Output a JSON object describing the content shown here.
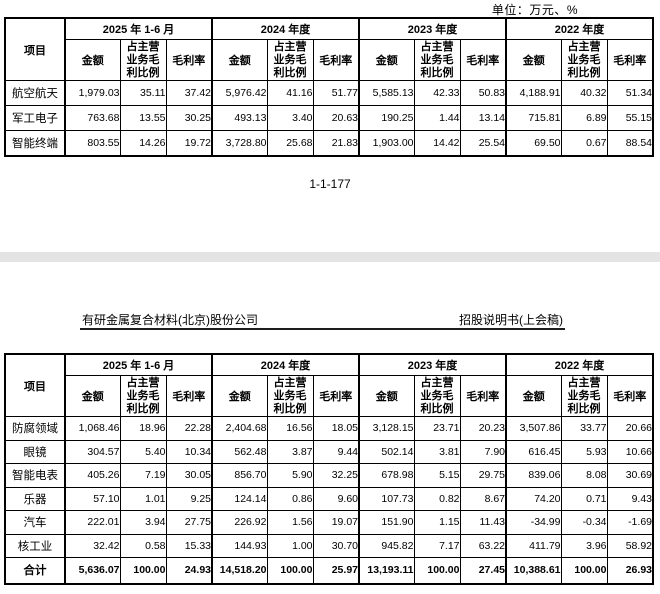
{
  "page1": {
    "unit_label": "单位：万元、%",
    "page_number": "1-1-177"
  },
  "page2": {
    "company": "有研金属复合材料(北京)股份公司",
    "doc_title": "招股说明书(上会稿)"
  },
  "table_header": {
    "item_label": "项目",
    "year_groups": [
      "2025 年 1-6 月",
      "2024 年度",
      "2023 年度",
      "2022 年度"
    ],
    "sub_columns": [
      "金额",
      "占主营业务毛利比例",
      "毛利率"
    ]
  },
  "table1": {
    "rows": [
      {
        "label": "航空航天",
        "values": [
          "1,979.03",
          "35.11",
          "37.42",
          "5,976.42",
          "41.16",
          "51.77",
          "5,585.13",
          "42.33",
          "50.83",
          "4,188.91",
          "40.32",
          "51.34"
        ]
      },
      {
        "label": "军工电子",
        "values": [
          "763.68",
          "13.55",
          "30.25",
          "493.13",
          "3.40",
          "20.63",
          "190.25",
          "1.44",
          "13.14",
          "715.81",
          "6.89",
          "55.15"
        ]
      },
      {
        "label": "智能终端",
        "values": [
          "803.55",
          "14.26",
          "19.72",
          "3,728.80",
          "25.68",
          "21.83",
          "1,903.00",
          "14.42",
          "25.54",
          "69.50",
          "0.67",
          "88.54"
        ]
      }
    ]
  },
  "table2": {
    "rows": [
      {
        "label": "防腐领域",
        "values": [
          "1,068.46",
          "18.96",
          "22.28",
          "2,404.68",
          "16.56",
          "18.05",
          "3,128.15",
          "23.71",
          "20.23",
          "3,507.86",
          "33.77",
          "20.66"
        ]
      },
      {
        "label": "眼镜",
        "values": [
          "304.57",
          "5.40",
          "10.34",
          "562.48",
          "3.87",
          "9.44",
          "502.14",
          "3.81",
          "7.90",
          "616.45",
          "5.93",
          "10.66"
        ]
      },
      {
        "label": "智能电表",
        "values": [
          "405.26",
          "7.19",
          "30.05",
          "856.70",
          "5.90",
          "32.25",
          "678.98",
          "5.15",
          "29.75",
          "839.06",
          "8.08",
          "30.69"
        ]
      },
      {
        "label": "乐器",
        "values": [
          "57.10",
          "1.01",
          "9.25",
          "124.14",
          "0.86",
          "9.60",
          "107.73",
          "0.82",
          "8.67",
          "74.20",
          "0.71",
          "9.43"
        ]
      },
      {
        "label": "汽车",
        "values": [
          "222.01",
          "3.94",
          "27.75",
          "226.92",
          "1.56",
          "19.07",
          "151.90",
          "1.15",
          "11.43",
          "-34.99",
          "-0.34",
          "-1.69"
        ]
      },
      {
        "label": "核工业",
        "values": [
          "32.42",
          "0.58",
          "15.33",
          "144.93",
          "1.00",
          "30.70",
          "945.82",
          "7.17",
          "63.22",
          "411.79",
          "3.96",
          "58.92"
        ]
      },
      {
        "label": "合计",
        "total": true,
        "values": [
          "5,636.07",
          "100.00",
          "24.93",
          "14,518.20",
          "100.00",
          "25.97",
          "13,193.11",
          "100.00",
          "27.45",
          "10,388.61",
          "100.00",
          "26.93"
        ]
      }
    ]
  }
}
